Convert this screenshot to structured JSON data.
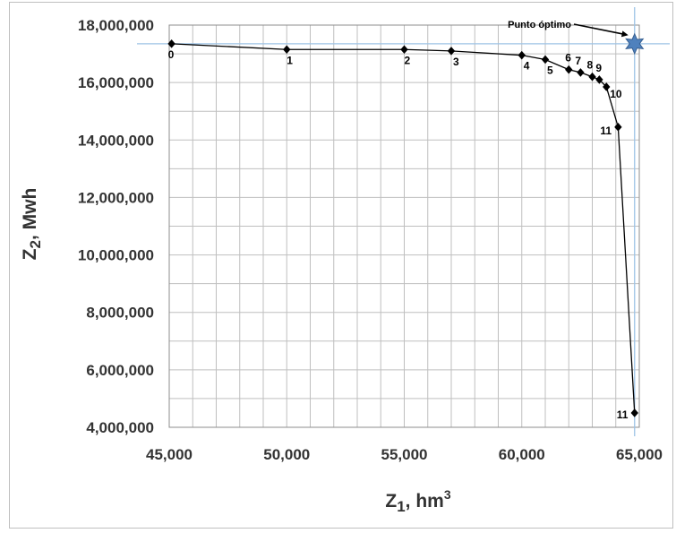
{
  "chart_data": {
    "type": "scatter",
    "xlabel_base": "Z",
    "xlabel_sub": "1",
    "xlabel_unit": ", hm",
    "xlabel_sup": "3",
    "ylabel_base": "Z",
    "ylabel_sub": "2",
    "ylabel_unit": ", Mwh",
    "xlim": [
      45000,
      65000
    ],
    "ylim": [
      4000000,
      18000000
    ],
    "x_ticks": [
      45000,
      50000,
      55000,
      60000,
      65000
    ],
    "x_tick_labels": [
      "45,000",
      "50,000",
      "55,000",
      "60,000",
      "65,000"
    ],
    "y_ticks": [
      4000000,
      6000000,
      8000000,
      10000000,
      12000000,
      14000000,
      16000000,
      18000000
    ],
    "y_tick_labels": [
      "4,000,000",
      "6,000,000",
      "8,000,000",
      "10,000,000",
      "12,000,000",
      "14,000,000",
      "16,000,000",
      "18,000,000"
    ],
    "grid": true,
    "marker_color": "#000000",
    "line_color": "#000000",
    "series": [
      {
        "x": [
          45100,
          50000,
          55000,
          57000,
          60000,
          61000,
          62000,
          62500,
          63000,
          63300,
          63600,
          64100,
          64800
        ],
        "y": [
          17350000,
          17150000,
          17150000,
          17100000,
          16950000,
          16800000,
          16450000,
          16350000,
          16200000,
          16100000,
          15850000,
          14450000,
          4500000
        ],
        "labels": [
          "0",
          "1",
          "2",
          "3",
          "4",
          "5",
          "6",
          "7",
          "8",
          "9",
          "10",
          "11",
          "11"
        ]
      }
    ],
    "optimum": {
      "label": "Punto óptimo",
      "x": 64800,
      "y": 17350000,
      "color": "#4f81bd"
    }
  }
}
